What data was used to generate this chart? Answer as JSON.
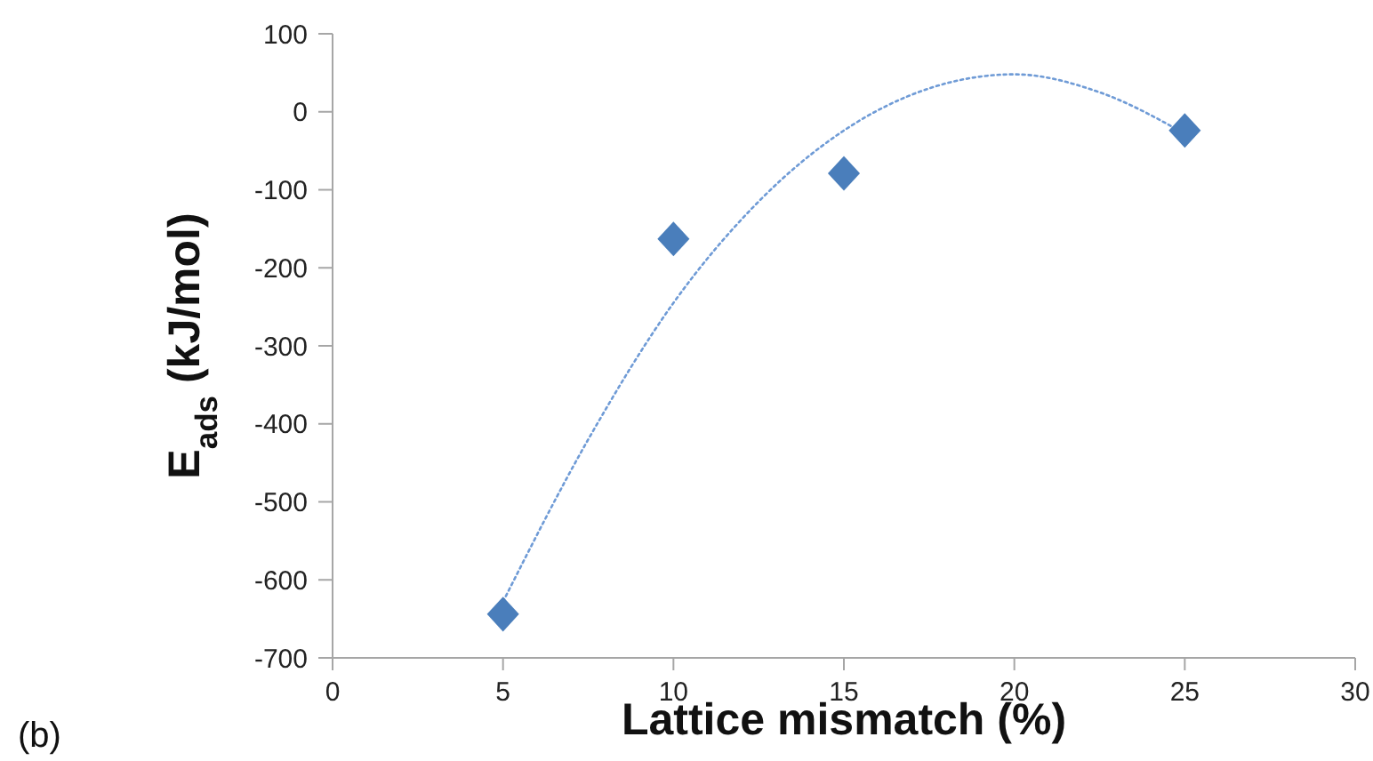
{
  "chart_data": {
    "type": "scatter",
    "xlabel": "Lattice mismatch (%)",
    "ylabel": "E$_{ads}$ (kJ/mol)",
    "annotations": [
      "(b)"
    ],
    "xlim": [
      0,
      30
    ],
    "xticks": [
      0,
      5,
      10,
      15,
      20,
      25,
      30
    ],
    "ylim": [
      -700,
      100
    ],
    "yticks": [
      -700,
      -600,
      -500,
      -400,
      -300,
      -200,
      -100,
      0,
      100
    ],
    "grid": false,
    "series": [
      {
        "type": "line",
        "color": "#6f9bd6",
        "line_style": "dotted",
        "marker": "none",
        "x": [
          5,
          7.5,
          10,
          12.5,
          15,
          17.5,
          20,
          22.5,
          25
        ],
        "values": [
          -628,
          -420,
          -245,
          -115,
          -24,
          30,
          48,
          25,
          -28
        ]
      },
      {
        "color": "#4a7ebb",
        "marker": "diamond",
        "x": [
          5,
          10,
          15,
          25
        ],
        "values": [
          -644,
          -163,
          -79,
          -24
        ]
      }
    ]
  }
}
